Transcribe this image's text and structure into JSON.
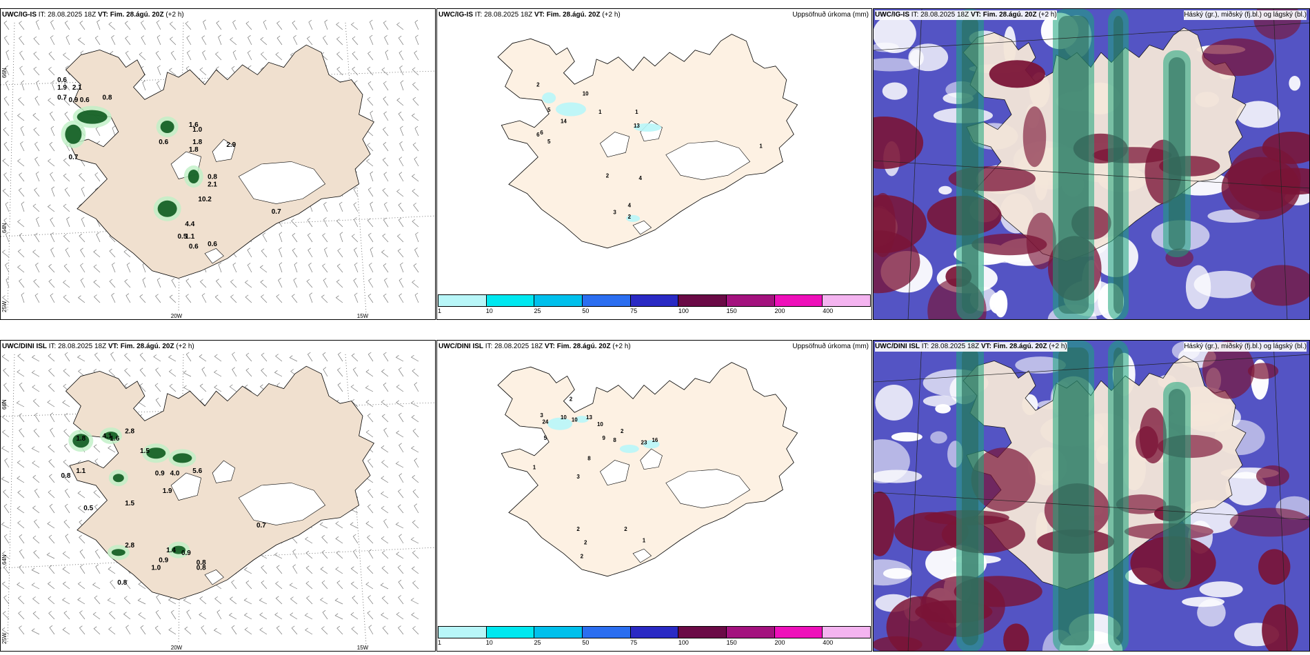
{
  "rows": [
    {
      "wind": {
        "model": "UWC/IG-IS",
        "it_label": "IT:",
        "it": "28.08.2025 18Z",
        "vt_label": "VT:",
        "vt": "Fim. 28.ágú. 20Z",
        "lead": "(+2 h)"
      },
      "precip": {
        "model": "UWC/IG-IS",
        "it_label": "IT:",
        "it": "28.08.2025 18Z",
        "vt_label": "VT:",
        "vt": "Fim. 28.ágú. 20Z",
        "lead": "(+2 h)",
        "right": "Uppsöfnuð úrkoma (mm)"
      },
      "cloud": {
        "model": "UWC/IG-IS",
        "it_label": "IT:",
        "it": "28.08.2025 18Z",
        "vt_label": "VT:",
        "vt": "Fim. 28.ágú. 20Z",
        "lead": "(+2 h)",
        "right": "Háský (gr.), miðský (fj.bl.) og lágský (bl.)"
      }
    },
    {
      "wind": {
        "model": "UWC/DINI ISL",
        "it_label": "IT:",
        "it": "28.08.2025 18Z",
        "vt_label": "VT:",
        "vt": "Fim. 28.ágú. 20Z",
        "lead": "(+2 h)"
      },
      "precip": {
        "model": "UWC/DINI ISL",
        "it_label": "IT:",
        "it": "28.08.2025 18Z",
        "vt_label": "VT:",
        "vt": "Fim. 28.ágú. 20Z",
        "lead": "(+2 h)",
        "right": "Uppsöfnuð úrkoma (mm)"
      },
      "cloud": {
        "model": "UWC/DINI ISL",
        "it_label": "IT:",
        "it": "28.08.2025 18Z",
        "vt_label": "VT:",
        "vt": "Fim. 28.ágú. 20Z",
        "lead": "(+2 h)",
        "right": "Háský (gr.), miðský (fj.bl.) og lágský (bl.)"
      }
    }
  ],
  "axis_labels": {
    "lat_66": "66N",
    "lat_64": "64N",
    "lon_25": "25W",
    "lon_20": "20W",
    "lon_15": "15W"
  },
  "legend": {
    "labels": [
      "1",
      "10",
      "25",
      "50",
      "75",
      "100",
      "150",
      "200",
      "400"
    ],
    "colors": [
      "#b8f6f8",
      "#00e8f0",
      "#00c0ec",
      "#2b6ef0",
      "#2a2ac4",
      "#6a0a46",
      "#a3127e",
      "#ee10ba",
      "#f4b4f0"
    ]
  },
  "precip_values_top": [
    "2",
    "10",
    "5",
    "6",
    "14",
    "1",
    "1",
    "13",
    "6",
    "5",
    "2",
    "4",
    "4",
    "3",
    "2",
    "1"
  ],
  "precip_values_bottom": [
    "2",
    "3",
    "24",
    "10",
    "10",
    "13",
    "10",
    "5",
    "9",
    "8",
    "2",
    "23",
    "16",
    "8",
    "1",
    "3",
    "2",
    "2",
    "2",
    "1",
    "2"
  ],
  "wind_values_top": [
    "0.6",
    "1.9",
    "2.1",
    "0.7",
    "0.9",
    "0.6",
    "0.8",
    "1.6",
    "1.0",
    "0.6",
    "1.8",
    "1.8",
    "2.9",
    "0.7",
    "0.8",
    "2.1",
    "10.2",
    "0.7",
    "4.4",
    "0.5",
    "1.1",
    "0.6",
    "0.6"
  ],
  "wind_values_bottom": [
    "1.8",
    "4.1",
    "1.6",
    "2.8",
    "1.5",
    "0.9",
    "4.0",
    "5.6",
    "0.8",
    "1.1",
    "1.9",
    "0.5",
    "1.5",
    "0.7",
    "2.8",
    "1.4",
    "0.9",
    "0.9",
    "1.0",
    "0.8",
    "0.8",
    "0.8"
  ]
}
